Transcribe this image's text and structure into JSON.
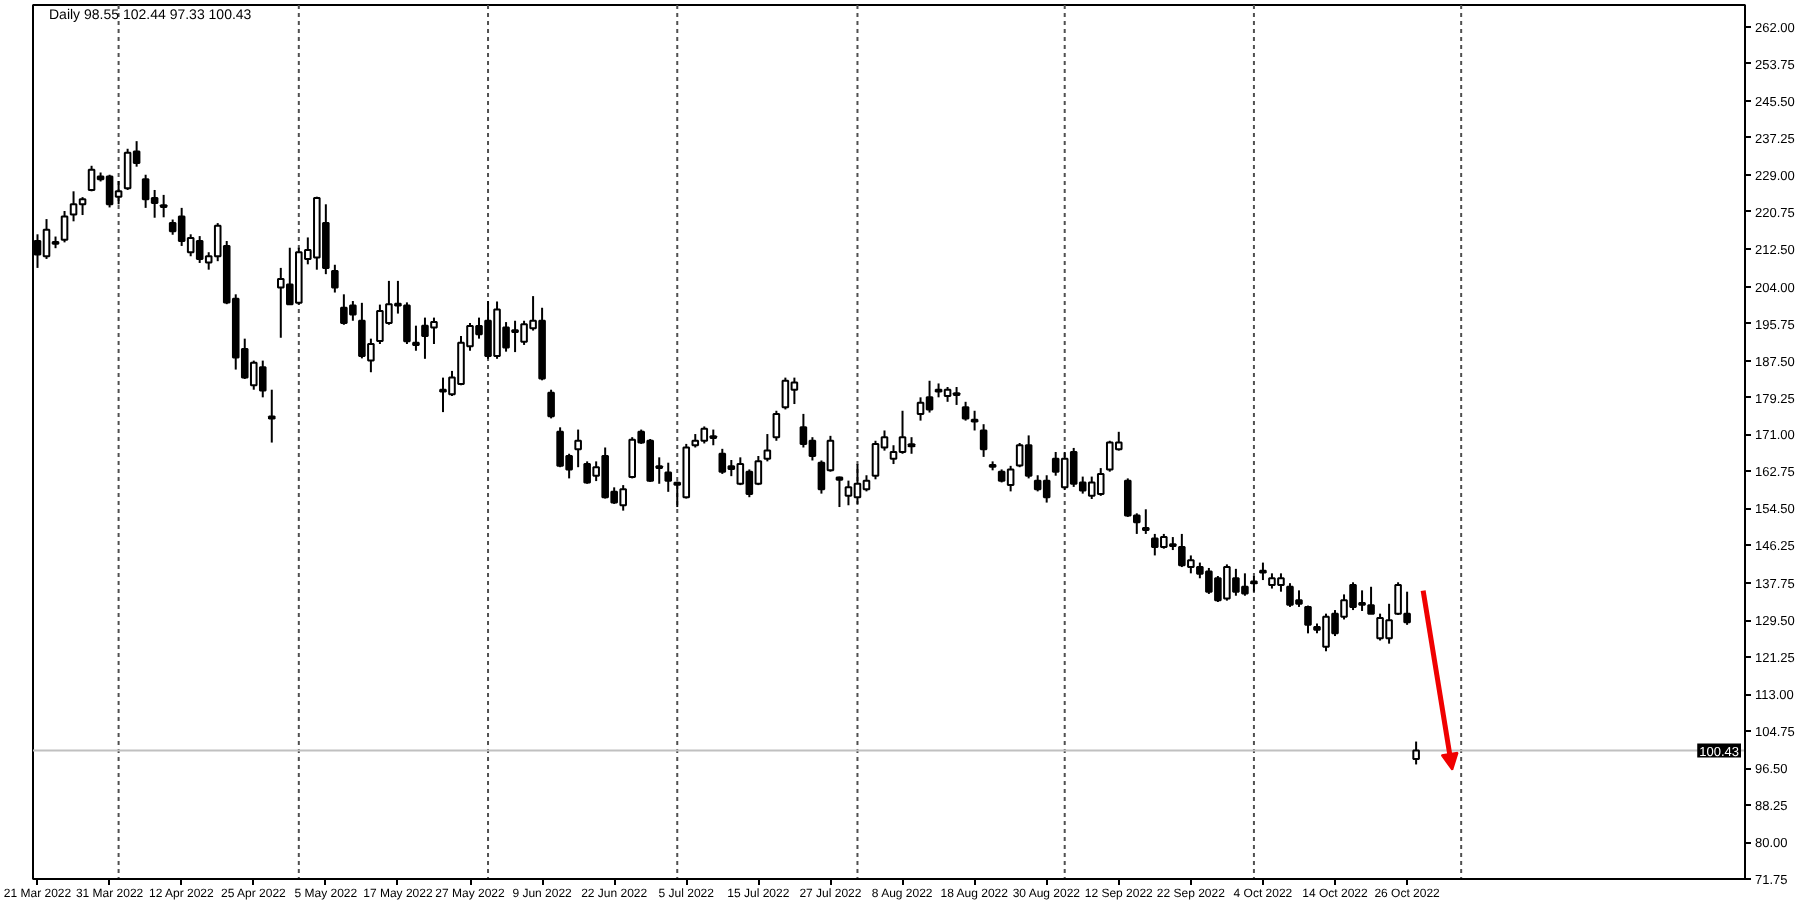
{
  "chart_data": {
    "type": "candlestick",
    "title": "Daily 98.55 102.44 97.33 100.43",
    "color": "#000000",
    "categories": [
      "21 Mar 2022",
      null,
      null,
      null,
      null,
      null,
      null,
      null,
      "31 Mar 2022",
      null,
      null,
      null,
      null,
      null,
      null,
      null,
      "12 Apr 2022",
      null,
      null,
      null,
      null,
      null,
      null,
      null,
      "25 Apr 2022",
      null,
      null,
      null,
      null,
      null,
      null,
      null,
      "5 May 2022",
      null,
      null,
      null,
      null,
      null,
      null,
      null,
      "17 May 2022",
      null,
      null,
      null,
      null,
      null,
      null,
      null,
      "27 May 2022",
      null,
      null,
      null,
      null,
      null,
      null,
      null,
      "9 Jun 2022",
      null,
      null,
      null,
      null,
      null,
      null,
      null,
      "22 Jun 2022",
      null,
      null,
      null,
      null,
      null,
      null,
      null,
      "5 Jul 2022",
      null,
      null,
      null,
      null,
      null,
      null,
      null,
      "15 Jul 2022",
      null,
      null,
      null,
      null,
      null,
      null,
      null,
      "27 Jul 2022",
      null,
      null,
      null,
      null,
      null,
      null,
      null,
      "8 Aug 2022",
      null,
      null,
      null,
      null,
      null,
      null,
      null,
      "18 Aug 2022",
      null,
      null,
      null,
      null,
      null,
      null,
      null,
      "30 Aug 2022",
      null,
      null,
      null,
      null,
      null,
      null,
      null,
      "12 Sep 2022",
      null,
      null,
      null,
      null,
      null,
      null,
      null,
      "22 Sep 2022",
      null,
      null,
      null,
      null,
      null,
      null,
      null,
      "4 Oct 2022",
      null,
      null,
      null,
      null,
      null,
      null,
      null,
      "14 Oct 2022",
      null,
      null,
      null,
      null,
      null,
      null,
      null,
      "26 Oct 2022",
      null,
      null,
      null,
      null,
      null,
      null,
      null,
      null,
      null,
      null,
      null,
      null,
      null,
      null,
      null,
      null,
      null,
      null,
      null,
      null,
      null,
      null,
      null,
      null,
      null,
      null,
      null,
      null,
      null,
      null,
      null,
      null,
      null,
      null,
      null,
      null,
      null
    ],
    "ohlc": [
      [
        214.2,
        215.7,
        208.2,
        211.2
      ],
      [
        210.8,
        219.1,
        210.2,
        216.7
      ],
      [
        213.6,
        215.2,
        212.6,
        214.0
      ],
      [
        214.5,
        220.9,
        213.9,
        219.7
      ],
      [
        220.1,
        225.3,
        218.6,
        222.4
      ],
      [
        222.4,
        224.0,
        220.0,
        223.5
      ],
      [
        225.6,
        231.0,
        225.3,
        230.1
      ],
      [
        228.6,
        229.5,
        227.5,
        228.0
      ],
      [
        228.6,
        229.0,
        221.7,
        222.4
      ],
      [
        224.1,
        227.6,
        222.4,
        225.3
      ],
      [
        226.0,
        234.8,
        225.6,
        233.9
      ],
      [
        234.2,
        236.5,
        230.8,
        231.6
      ],
      [
        228.0,
        229.0,
        221.6,
        223.5
      ],
      [
        223.8,
        225.6,
        219.4,
        222.7
      ],
      [
        222.2,
        224.5,
        219.5,
        221.8
      ],
      [
        218.2,
        219.0,
        215.6,
        216.4
      ],
      [
        219.7,
        221.6,
        213.1,
        214.2
      ],
      [
        211.7,
        215.7,
        210.8,
        214.9
      ],
      [
        214.2,
        215.3,
        209.3,
        210.2
      ],
      [
        209.4,
        211.7,
        207.8,
        210.8
      ],
      [
        210.8,
        218.2,
        209.7,
        217.6
      ],
      [
        213.1,
        214.2,
        200.1,
        200.5
      ],
      [
        201.3,
        202.3,
        185.5,
        188.2
      ],
      [
        190.1,
        192.4,
        183.4,
        183.7
      ],
      [
        182.0,
        187.5,
        181.0,
        187.0
      ],
      [
        186.0,
        187.5,
        179.3,
        180.8
      ],
      [
        174.6,
        181.0,
        169.2,
        175.0
      ],
      [
        203.8,
        208.2,
        192.6,
        205.7
      ],
      [
        204.5,
        212.7,
        200.0,
        200.1
      ],
      [
        200.4,
        212.7,
        200.0,
        211.7
      ],
      [
        210.2,
        215.0,
        209.0,
        212.2
      ],
      [
        210.5,
        224.1,
        207.8,
        223.8
      ],
      [
        218.2,
        222.4,
        206.8,
        208.2
      ],
      [
        207.5,
        208.9,
        202.7,
        203.8
      ],
      [
        199.3,
        202.3,
        195.5,
        195.9
      ],
      [
        199.8,
        200.8,
        196.4,
        197.8
      ],
      [
        196.4,
        200.4,
        188.0,
        188.5
      ],
      [
        187.5,
        192.4,
        184.9,
        191.2
      ],
      [
        191.9,
        200.0,
        191.2,
        198.6
      ],
      [
        195.9,
        205.3,
        195.5,
        200.1
      ],
      [
        199.8,
        205.3,
        198.0,
        200.2
      ],
      [
        199.8,
        200.5,
        191.2,
        191.8
      ],
      [
        191.5,
        195.3,
        189.7,
        191.0
      ],
      [
        195.3,
        197.1,
        187.9,
        193.0
      ],
      [
        194.9,
        197.1,
        191.2,
        196.1
      ],
      [
        180.6,
        183.7,
        176.0,
        181.0
      ],
      [
        180.0,
        185.2,
        179.6,
        183.7
      ],
      [
        182.3,
        193.0,
        182.0,
        191.5
      ],
      [
        190.7,
        195.9,
        189.7,
        195.2
      ],
      [
        195.2,
        197.1,
        192.4,
        193.4
      ],
      [
        196.4,
        200.8,
        187.9,
        188.5
      ],
      [
        188.5,
        200.7,
        187.9,
        198.9
      ],
      [
        194.9,
        196.1,
        189.5,
        190.4
      ],
      [
        194.3,
        196.4,
        189.4,
        193.9
      ],
      [
        191.7,
        196.4,
        191.0,
        195.6
      ],
      [
        194.7,
        201.9,
        194.2,
        196.4
      ],
      [
        196.4,
        199.3,
        183.1,
        183.5
      ],
      [
        180.3,
        181.0,
        174.6,
        175.1
      ],
      [
        171.6,
        172.6,
        163.7,
        164.0
      ],
      [
        166.2,
        166.7,
        161.2,
        163.2
      ],
      [
        167.7,
        172.1,
        163.7,
        169.6
      ],
      [
        164.4,
        165.0,
        160.0,
        160.3
      ],
      [
        161.8,
        165.0,
        160.6,
        163.7
      ],
      [
        166.2,
        168.1,
        156.7,
        157.0
      ],
      [
        158.2,
        159.2,
        155.5,
        155.8
      ],
      [
        155.2,
        159.7,
        154.0,
        158.8
      ],
      [
        161.5,
        170.4,
        161.2,
        169.8
      ],
      [
        171.6,
        172.1,
        168.9,
        169.2
      ],
      [
        169.6,
        170.0,
        160.4,
        160.7
      ],
      [
        163.9,
        165.9,
        160.0,
        163.5
      ],
      [
        162.5,
        164.7,
        158.2,
        160.7
      ],
      [
        160.2,
        160.5,
        154.8,
        159.8
      ],
      [
        157.0,
        168.9,
        156.7,
        168.1
      ],
      [
        168.6,
        171.1,
        168.1,
        169.6
      ],
      [
        169.6,
        172.8,
        169.0,
        172.3
      ],
      [
        170.6,
        172.1,
        168.6,
        170.2
      ],
      [
        166.7,
        167.8,
        162.2,
        162.7
      ],
      [
        163.9,
        165.3,
        161.7,
        163.3
      ],
      [
        160.0,
        165.9,
        159.7,
        164.4
      ],
      [
        162.7,
        163.2,
        157.0,
        157.7
      ],
      [
        160.0,
        166.2,
        159.7,
        165.0
      ],
      [
        165.6,
        171.1,
        165.0,
        167.4
      ],
      [
        170.4,
        176.3,
        169.6,
        175.6
      ],
      [
        177.1,
        183.7,
        176.6,
        183.0
      ],
      [
        181.0,
        183.7,
        177.8,
        182.6
      ],
      [
        172.6,
        175.6,
        168.1,
        168.9
      ],
      [
        169.6,
        170.4,
        165.2,
        166.2
      ],
      [
        164.7,
        165.2,
        157.8,
        158.8
      ],
      [
        163.0,
        170.7,
        162.7,
        169.6
      ],
      [
        161.4,
        161.6,
        154.8,
        160.9
      ],
      [
        157.3,
        160.7,
        155.2,
        159.2
      ],
      [
        157.0,
        164.4,
        155.5,
        160.0
      ],
      [
        158.8,
        161.9,
        158.3,
        160.7
      ],
      [
        161.8,
        169.6,
        161.0,
        168.9
      ],
      [
        168.1,
        171.9,
        167.4,
        170.4
      ],
      [
        165.6,
        168.6,
        164.4,
        167.1
      ],
      [
        167.1,
        176.3,
        166.7,
        170.4
      ],
      [
        168.8,
        170.4,
        166.7,
        168.4
      ],
      [
        175.6,
        179.3,
        174.1,
        178.1
      ],
      [
        179.3,
        183.0,
        175.9,
        176.6
      ],
      [
        181.0,
        182.4,
        179.3,
        180.6
      ],
      [
        179.6,
        181.6,
        178.3,
        181.0
      ],
      [
        180.2,
        181.6,
        177.6,
        179.8
      ],
      [
        177.1,
        178.3,
        174.1,
        174.6
      ],
      [
        174.3,
        176.3,
        171.9,
        173.9
      ],
      [
        171.9,
        173.3,
        166.0,
        167.7
      ],
      [
        164.2,
        165.0,
        163.0,
        163.8
      ],
      [
        162.7,
        163.2,
        160.3,
        160.7
      ],
      [
        159.7,
        164.0,
        158.3,
        163.2
      ],
      [
        164.1,
        169.1,
        163.7,
        168.6
      ],
      [
        168.6,
        170.8,
        161.2,
        161.8
      ],
      [
        160.7,
        161.9,
        158.3,
        158.8
      ],
      [
        160.7,
        161.9,
        155.8,
        157.0
      ],
      [
        165.6,
        167.1,
        161.8,
        162.7
      ],
      [
        159.2,
        167.1,
        158.6,
        165.6
      ],
      [
        167.1,
        168.0,
        159.3,
        160.0
      ],
      [
        160.3,
        161.6,
        157.8,
        158.5
      ],
      [
        157.3,
        161.6,
        156.6,
        160.3
      ],
      [
        157.7,
        163.5,
        157.3,
        162.2
      ],
      [
        163.2,
        169.6,
        162.7,
        169.2
      ],
      [
        167.7,
        171.6,
        167.4,
        169.2
      ],
      [
        160.7,
        161.2,
        152.6,
        152.9
      ],
      [
        152.9,
        153.4,
        148.8,
        151.4
      ],
      [
        150.1,
        154.3,
        148.8,
        149.7
      ],
      [
        147.8,
        148.8,
        144.0,
        145.9
      ],
      [
        145.9,
        148.8,
        145.5,
        148.1
      ],
      [
        146.5,
        148.1,
        145.2,
        146.1
      ],
      [
        145.9,
        148.8,
        141.4,
        141.8
      ],
      [
        141.4,
        144.0,
        140.0,
        142.9
      ],
      [
        141.4,
        142.4,
        138.9,
        139.9
      ],
      [
        140.4,
        141.2,
        135.4,
        135.9
      ],
      [
        138.9,
        139.4,
        133.6,
        134.0
      ],
      [
        134.4,
        142.0,
        133.9,
        141.4
      ],
      [
        138.9,
        141.0,
        135.0,
        135.9
      ],
      [
        137.0,
        140.0,
        135.0,
        135.5
      ],
      [
        138.2,
        139.4,
        135.9,
        137.8
      ],
      [
        140.6,
        142.4,
        138.5,
        140.2
      ],
      [
        137.4,
        140.0,
        136.6,
        138.9
      ],
      [
        137.4,
        140.0,
        135.9,
        138.9
      ],
      [
        137.0,
        137.8,
        132.5,
        133.0
      ],
      [
        134.0,
        136.2,
        132.5,
        133.2
      ],
      [
        132.5,
        132.8,
        126.6,
        128.5
      ],
      [
        128.0,
        128.8,
        126.6,
        127.4
      ],
      [
        123.6,
        131.0,
        122.6,
        130.3
      ],
      [
        131.0,
        131.8,
        126.0,
        126.6
      ],
      [
        130.3,
        135.3,
        129.7,
        134.0
      ],
      [
        137.4,
        138.0,
        131.8,
        132.5
      ],
      [
        133.4,
        136.2,
        131.6,
        133.0
      ],
      [
        132.9,
        137.0,
        131.0,
        131.0
      ],
      [
        125.5,
        131.0,
        125.0,
        130.0
      ],
      [
        125.5,
        133.2,
        124.3,
        129.5
      ],
      [
        131.0,
        138.0,
        130.7,
        137.4
      ],
      [
        131.0,
        135.9,
        128.5,
        129.1
      ],
      [
        98.55,
        102.44,
        97.33,
        100.43
      ],
      null,
      null,
      null,
      null,
      null,
      null,
      null,
      null,
      null,
      null,
      null,
      null,
      null,
      null,
      null,
      null,
      null,
      null,
      null,
      null,
      null,
      null,
      null,
      null,
      null,
      null,
      null,
      null,
      null,
      null,
      null,
      null,
      null,
      null,
      null,
      null
    ],
    "colors": [
      "#000000",
      "#ffffff",
      "#ffffff",
      "#ffffff",
      "#ffffff",
      "#ffffff",
      "#ffffff",
      "#000000",
      "#000000",
      "#ffffff",
      "#ffffff",
      "#000000",
      "#000000",
      "#000000",
      "#000000",
      "#000000",
      "#000000",
      "#ffffff",
      "#000000",
      "#ffffff",
      "#ffffff",
      "#000000",
      "#000000",
      "#000000",
      "#ffffff",
      "#000000",
      "#ffffff",
      "#ffffff",
      "#000000",
      "#ffffff",
      "#ffffff",
      "#ffffff",
      "#000000",
      "#000000",
      "#000000",
      "#000000",
      "#000000",
      "#ffffff",
      "#ffffff",
      "#ffffff",
      "#ffffff",
      "#000000",
      "#000000",
      "#000000",
      "#ffffff",
      "#ffffff",
      "#ffffff",
      "#ffffff",
      "#ffffff",
      "#000000",
      "#000000",
      "#ffffff",
      "#000000",
      "#000000",
      "#ffffff",
      "#ffffff",
      "#000000",
      "#000000",
      "#000000",
      "#000000",
      "#ffffff",
      "#000000",
      "#ffffff",
      "#000000",
      "#000000",
      "#ffffff",
      "#ffffff",
      "#000000",
      "#000000",
      "#000000",
      "#000000",
      "#000000",
      "#ffffff",
      "#ffffff",
      "#ffffff",
      "#000000",
      "#000000",
      "#000000",
      "#ffffff",
      "#000000",
      "#ffffff",
      "#ffffff",
      "#ffffff",
      "#ffffff",
      "#ffffff",
      "#000000",
      "#000000",
      "#000000",
      "#ffffff",
      "#000000",
      "#ffffff",
      "#ffffff",
      "#ffffff",
      "#ffffff",
      "#ffffff",
      "#ffffff",
      "#ffffff",
      "#000000",
      "#ffffff",
      "#000000",
      "#000000",
      "#ffffff",
      "#000000",
      "#000000",
      "#000000",
      "#000000",
      "#000000",
      "#000000",
      "#ffffff",
      "#ffffff",
      "#000000",
      "#000000",
      "#000000",
      "#000000",
      "#ffffff",
      "#000000",
      "#000000",
      "#ffffff",
      "#ffffff",
      "#ffffff",
      "#ffffff",
      "#000000",
      "#000000",
      "#000000",
      "#000000",
      "#ffffff",
      "#000000",
      "#000000",
      "#ffffff",
      "#000000",
      "#000000",
      "#000000",
      "#ffffff",
      "#000000",
      "#000000",
      "#000000",
      "#000000",
      "#ffffff",
      "#ffffff",
      "#000000",
      "#000000",
      "#000000",
      "#000000",
      "#ffffff",
      "#000000",
      "#ffffff",
      "#000000",
      "#000000",
      "#000000",
      "#ffffff",
      "#ffffff",
      "#ffffff",
      "#000000",
      "#ffffff",
      null,
      null,
      null,
      null,
      null,
      null,
      null,
      null,
      null,
      null,
      null,
      null,
      null,
      null,
      null,
      null,
      null,
      null,
      null,
      null,
      null,
      null,
      null,
      null,
      null,
      null,
      null,
      null,
      null,
      null,
      null,
      null,
      null,
      null,
      null,
      null
    ],
    "ylim": [
      71.75,
      266.9
    ],
    "yticks": [
      {
        "value": 262,
        "label": "262.00"
      },
      253.75,
      {
        "value": 245.5,
        "label": "245.50"
      },
      237.25,
      {
        "value": 229,
        "label": "229.00"
      },
      220.75,
      {
        "value": 212.5,
        "label": "212.50"
      },
      {
        "value": 204,
        "label": "204.00"
      },
      195.75,
      {
        "value": 187.5,
        "label": "187.50"
      },
      179.25,
      {
        "value": 171,
        "label": "171.00"
      },
      162.75,
      {
        "value": 154.5,
        "label": "154.50"
      },
      146.25,
      137.75,
      {
        "value": 129.5,
        "label": "129.50"
      },
      121.25,
      {
        "value": 113,
        "label": "113.00"
      },
      104.75,
      {
        "value": 96.5,
        "label": "96.50"
      },
      88.25,
      {
        "value": 80,
        "label": "80.00"
      },
      71.75
    ],
    "ref_lines": [
      {
        "axis": "y",
        "value": 100.43,
        "label": "100.43",
        "color": "#c0c0c0",
        "line_style": "solid"
      }
    ]
  }
}
